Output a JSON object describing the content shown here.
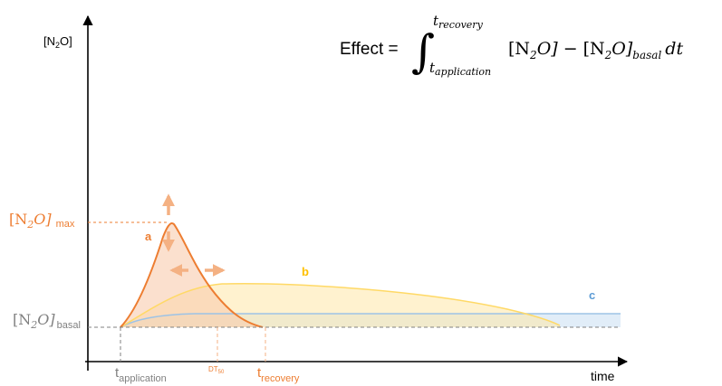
{
  "axes": {
    "y_label": {
      "pre": "[N",
      "sub": "2",
      "post": "O]"
    },
    "x_label": "time"
  },
  "formula": {
    "lhs": "Effect =",
    "upper_limit": "t",
    "upper_limit_sub": "recovery",
    "lower_limit": "t",
    "lower_limit_sub": "application",
    "integrand_a": "[N",
    "integrand_a_sub": "2",
    "integrand_a_post": "O]",
    "minus": "−",
    "integrand_b": "[N",
    "integrand_b_sub": "2",
    "integrand_b_post": "O]",
    "integrand_b_sub2": "basal",
    "dt": "dt"
  },
  "levels": {
    "max": {
      "pre": "[N",
      "sub": "2",
      "post": "O]",
      "label": "max"
    },
    "basal": {
      "pre": "[N",
      "sub": "2",
      "post": "O]",
      "label": "basal"
    }
  },
  "time_markers": {
    "application": {
      "t": "t",
      "sub": "application"
    },
    "dt50": {
      "t": "DT",
      "sub": "50"
    },
    "recovery": {
      "t": "t",
      "sub": "recovery"
    }
  },
  "curves": [
    {
      "id": "a",
      "label": "a",
      "color": "#ED7D31"
    },
    {
      "id": "b",
      "label": "b",
      "color": "#FFC000"
    },
    {
      "id": "c",
      "label": "c",
      "color": "#5B9BD5"
    }
  ],
  "colors": {
    "axis": "#000000",
    "orange": "#ED7D31",
    "orange_light": "#F4B183",
    "yellow": "#FFC000",
    "blue": "#5B9BD5",
    "gray": "#808080"
  }
}
